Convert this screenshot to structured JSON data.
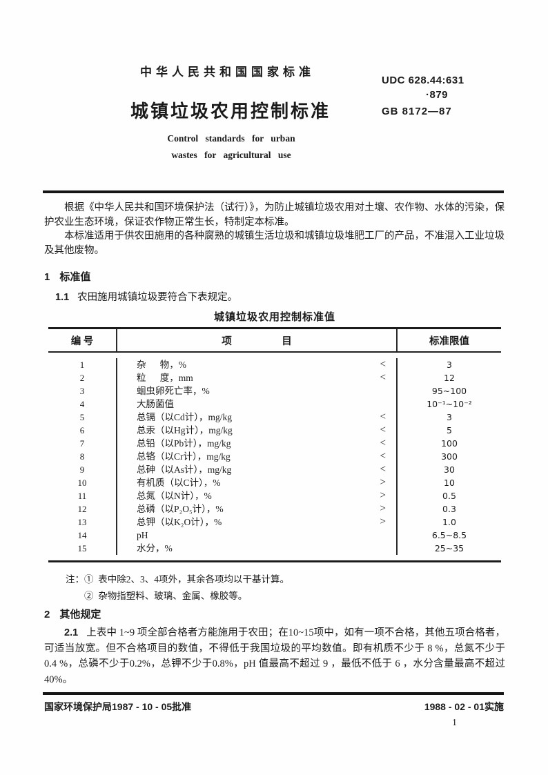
{
  "colors": {
    "ink": "#1b1b1b",
    "paper": "#fefefe"
  },
  "header": {
    "national_standard_label": "中华人民共和国国家标准",
    "udc_line1": "UDC 628.44:631",
    "udc_line2": "·879",
    "title_cn": "城镇垃圾农用控制标准",
    "standard_code": "GB 8172—87",
    "title_en_line1": "Control standards for urban",
    "title_en_line2": "wastes for agricultural use"
  },
  "intro": {
    "paragraph1": "根据《中华人民共和国环境保护法（试行）》，为防止城镇垃圾农用对土壤、农作物、水体的污染，保护农业生态环境，保证农作物正常生长，特制定本标准。",
    "paragraph2": "本标准适用于供农田施用的各种腐熟的城镇生活垃圾和城镇垃圾堆肥工厂的产品，不准混入工业垃圾及其他废物。"
  },
  "section1": {
    "heading_number": "1",
    "heading_label": "标准值",
    "clause_number": "1.1",
    "clause_text": "农田施用城镇垃圾要符合下表规定。"
  },
  "table": {
    "title": "城镇垃圾农用控制标准值",
    "headers": {
      "col_no": "编    号",
      "col_item": "项                    目",
      "col_limit": "标准限值"
    },
    "rows": [
      {
        "no": "1",
        "item": "杂      物，%",
        "sign": "<",
        "limit": "3"
      },
      {
        "no": "2",
        "item": "粒      度，mm",
        "sign": "<",
        "limit": "12"
      },
      {
        "no": "3",
        "item": "蛔虫卵死亡率，%",
        "sign": "",
        "limit": "95~100"
      },
      {
        "no": "4",
        "item": "大肠菌值",
        "sign": "",
        "limit": "10⁻¹~10⁻²"
      },
      {
        "no": "5",
        "item": "总镉（以Cd计），mg/kg",
        "sign": "<",
        "limit": "3"
      },
      {
        "no": "6",
        "item": "总汞（以Hg计），mg/kg",
        "sign": "<",
        "limit": "5"
      },
      {
        "no": "7",
        "item": "总铅（以Pb计），mg/kg",
        "sign": "<",
        "limit": "100"
      },
      {
        "no": "8",
        "item": "总铬（以Cr计），mg/kg",
        "sign": "<",
        "limit": "300"
      },
      {
        "no": "9",
        "item": "总砷（以As计），mg/kg",
        "sign": "<",
        "limit": "30"
      },
      {
        "no": "10",
        "item": "有机质（以C计），%",
        "sign": ">",
        "limit": "10"
      },
      {
        "no": "11",
        "item": "总氮（以N计），%",
        "sign": ">",
        "limit": "0.5"
      },
      {
        "no": "12",
        "item": "总磷（以P₂O₅计），%",
        "sign": ">",
        "limit": "0.3"
      },
      {
        "no": "13",
        "item": "总钾（以K₂O计），%",
        "sign": ">",
        "limit": "1.0"
      },
      {
        "no": "14",
        "item": "pH",
        "sign": "",
        "limit": "6.5~8.5"
      },
      {
        "no": "15",
        "item": "水分，%",
        "sign": "",
        "limit": "25~35"
      }
    ]
  },
  "notes": {
    "label": "注：",
    "items": [
      "①  表中除2、3、4项外，其余各项均以干基计算。",
      "②  杂物指塑料、玻璃、金属、橡胶等。"
    ]
  },
  "section2": {
    "heading_number": "2",
    "heading_label": "其他规定",
    "clause_number": "2.1",
    "clause_text": "上表中 1~9 项全部合格者方能施用于农田；在10~15项中，如有一项不合格，其他五项合格者，可适当放宽。但不合格项目的数值，不得低于我国垃圾的平均数值。即有机质不少于 8 %，总氮不少于0.4 %，总磷不少于0.2%，总钾不少于0.8%，pH 值最高不超过 9 ，最低不低于 6 ，水分含量最高不超过40%。"
  },
  "footer": {
    "approval": "国家环境保护局1987 - 10 - 05批准",
    "implementation": "1988 - 02 - 01实施",
    "page_number": "1"
  }
}
